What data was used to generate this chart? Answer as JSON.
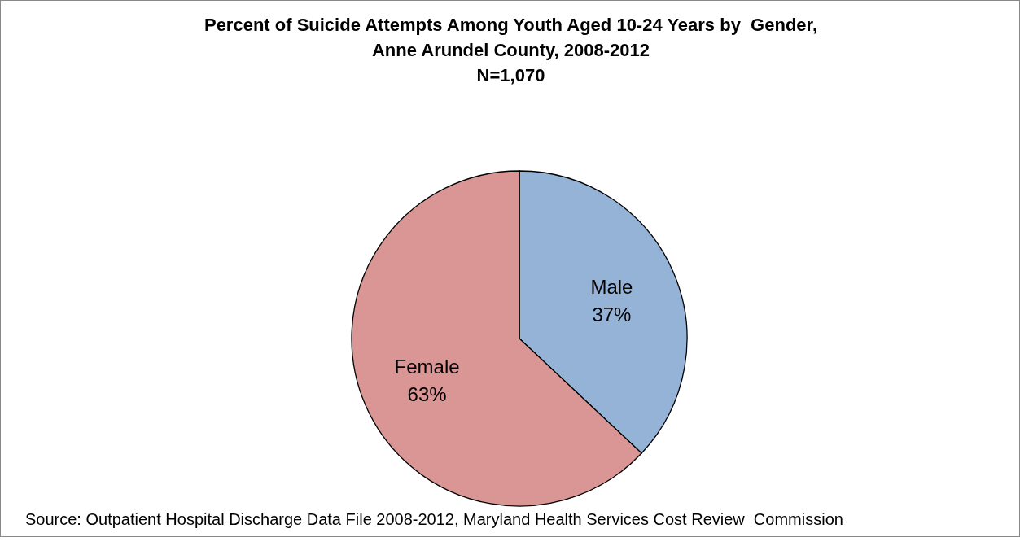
{
  "chart_data": {
    "type": "pie",
    "title": "Percent of Suicide Attempts Among Youth Aged 10-24 Years by  Gender,\nAnne Arundel County, 2008-2012\nN=1,070",
    "categories": [
      "Male",
      "Female"
    ],
    "values": [
      37,
      63
    ],
    "colors": [
      "#95b3d7",
      "#d99694"
    ],
    "data_labels": true,
    "value_labels": [
      "37%",
      "63%"
    ],
    "annotations": [
      "Source: Outpatient Hospital Discharge Data File 2008-2012, Maryland Health Services Cost Review  Commission"
    ]
  }
}
